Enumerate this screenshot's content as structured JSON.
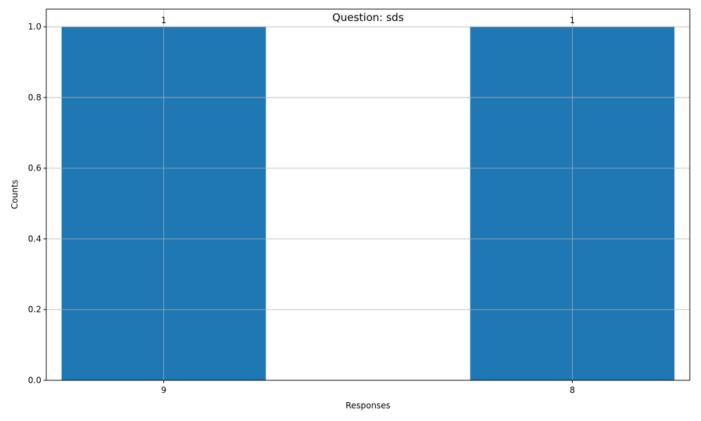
{
  "chart_data": {
    "type": "bar",
    "title": "Question: sds",
    "xlabel": "Responses",
    "ylabel": "Counts",
    "categories": [
      "9",
      "8"
    ],
    "values": [
      1,
      1
    ],
    "data_labels": [
      "1",
      "1"
    ],
    "ylim": [
      0,
      1.05
    ],
    "yticks": [
      0.0,
      0.2,
      0.4,
      0.6,
      0.8,
      1.0
    ],
    "ytick_labels": [
      "0.0",
      "0.2",
      "0.4",
      "0.6",
      "0.8",
      "1.0"
    ],
    "grid": true,
    "bar_color": "#1f77b4",
    "grid_color": "#b0b0b0"
  }
}
